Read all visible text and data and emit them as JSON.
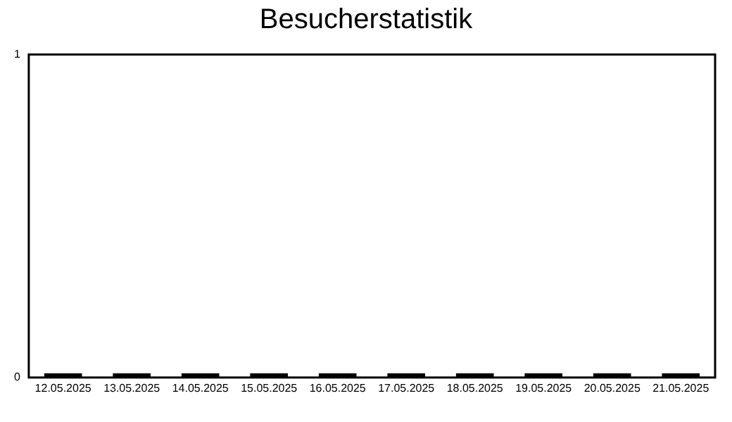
{
  "chart_data": {
    "type": "bar",
    "title": "Besucherstatistik",
    "categories": [
      "12.05.2025",
      "13.05.2025",
      "14.05.2025",
      "15.05.2025",
      "16.05.2025",
      "17.05.2025",
      "18.05.2025",
      "19.05.2025",
      "20.05.2025",
      "21.05.2025"
    ],
    "values": [
      0,
      0,
      0,
      0,
      0,
      0,
      0,
      0,
      0,
      0
    ],
    "color": "#000000",
    "ylim": [
      0,
      1
    ],
    "yticks": [
      0,
      1
    ],
    "grid": false,
    "legend": false
  }
}
